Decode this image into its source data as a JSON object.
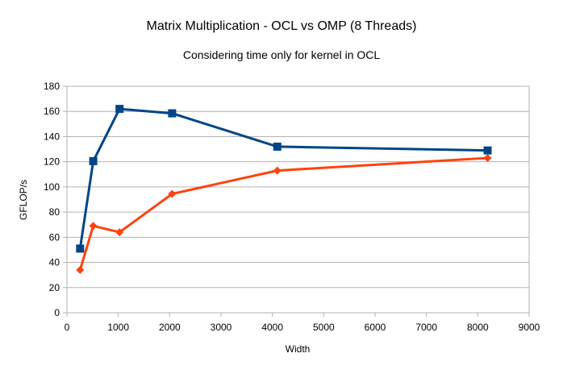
{
  "chart_data": {
    "type": "line",
    "title": "Matrix Multiplication - OCL vs OMP (8 Threads)",
    "subtitle": "Considering time only for kernel in OCL",
    "xlabel": "Width",
    "ylabel": "GFLOP/s",
    "xlim": [
      0,
      9000
    ],
    "ylim": [
      0,
      180
    ],
    "x_ticks": [
      0,
      1000,
      2000,
      3000,
      4000,
      5000,
      6000,
      7000,
      8000,
      9000
    ],
    "y_ticks": [
      0,
      20,
      40,
      60,
      80,
      100,
      120,
      140,
      160,
      180
    ],
    "grid": "horizontal",
    "legend": "none",
    "series": [
      {
        "color": "#004586",
        "marker": "square",
        "points": [
          [
            256,
            51
          ],
          [
            512,
            120.5
          ],
          [
            1024,
            162
          ],
          [
            2048,
            158.5
          ],
          [
            4096,
            132
          ],
          [
            8192,
            129
          ]
        ]
      },
      {
        "color": "#ff420e",
        "marker": "diamond",
        "points": [
          [
            256,
            34
          ],
          [
            512,
            69
          ],
          [
            1024,
            64
          ],
          [
            2048,
            94.5
          ],
          [
            4096,
            113
          ],
          [
            8192,
            123
          ]
        ]
      }
    ]
  }
}
